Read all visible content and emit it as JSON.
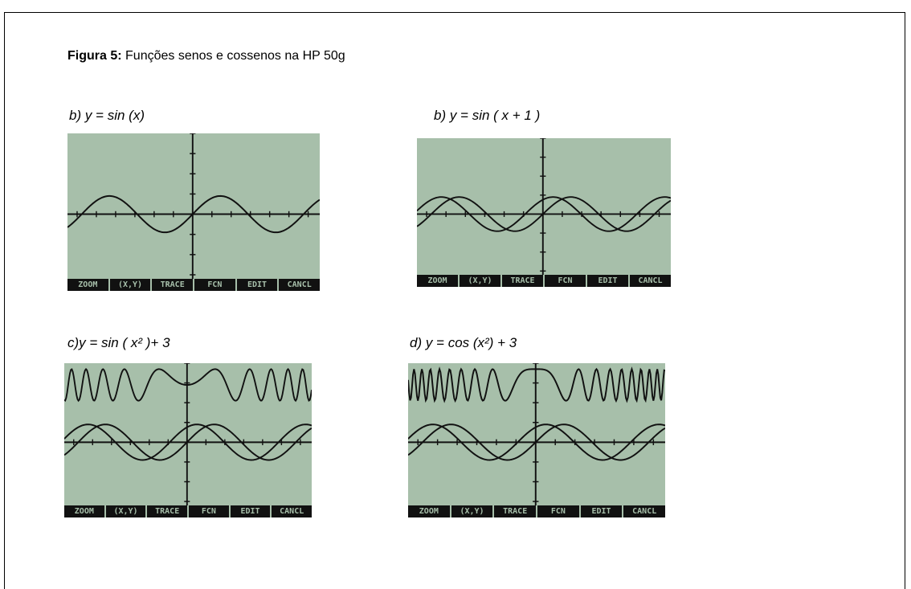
{
  "figure": {
    "label": "Figura 5:",
    "caption": "Funções senos e cossenos na HP 50g"
  },
  "menu_keys": [
    "ZOOM",
    "(X,Y)",
    "TRACE",
    "FCN",
    "EDIT",
    "CANCL"
  ],
  "panels": [
    {
      "label": "b)  y = sin (x)"
    },
    {
      "label": "b) y = sin ( x + 1 )"
    },
    {
      "label": "c)y = sin ( x² )+  3"
    },
    {
      "label": "d) y = cos (x²) + 3"
    }
  ]
}
